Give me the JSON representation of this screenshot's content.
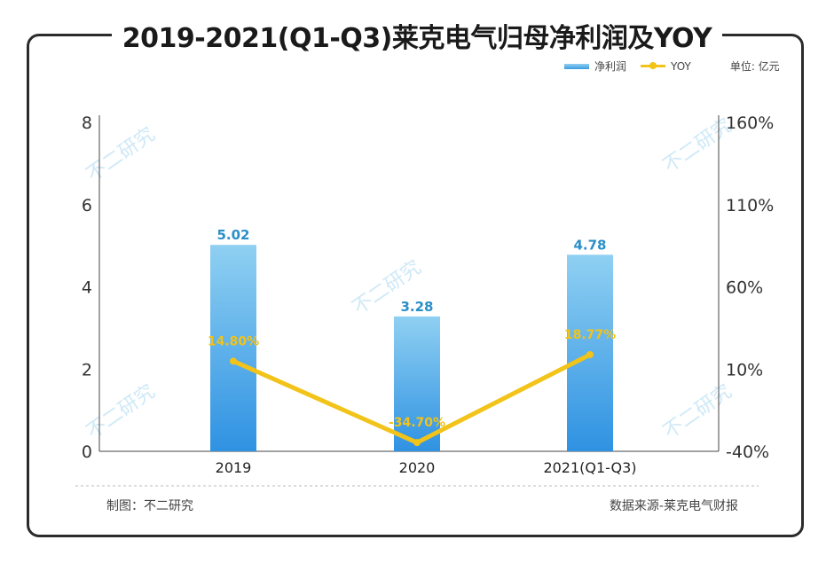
{
  "title": "2019-2021(Q1-Q3)莱克电气归母净利润及YOY",
  "legend": {
    "bar": "净利润",
    "line": "YOY",
    "unit": "单位: 亿元"
  },
  "footer": {
    "left": "制图：不二研究",
    "right": "数据来源-莱克电气财报"
  },
  "watermark": "不二研究",
  "chart_data": {
    "type": "bar+line",
    "categories": [
      "2019",
      "2020",
      "2021(Q1-Q3)"
    ],
    "series": [
      {
        "name": "净利润",
        "type": "bar",
        "axis": "left",
        "values": [
          5.02,
          3.28,
          4.78
        ],
        "labels": [
          "5.02",
          "3.28",
          "4.78"
        ],
        "color": "#3a9de0"
      },
      {
        "name": "YOY",
        "type": "line",
        "axis": "right",
        "values": [
          14.8,
          -34.7,
          18.77
        ],
        "labels": [
          "14.80%",
          "-34.70%",
          "18.77%"
        ],
        "color": "#f2c318"
      }
    ],
    "left_axis": {
      "ylim": [
        0,
        8
      ],
      "ticks": [
        "0",
        "2",
        "4",
        "6",
        "8"
      ]
    },
    "right_axis": {
      "ylim": [
        -40,
        160
      ],
      "ticks": [
        "-40%",
        "10%",
        "60%",
        "110%",
        "160%"
      ]
    },
    "grid": false,
    "legend_position": "top-right"
  }
}
